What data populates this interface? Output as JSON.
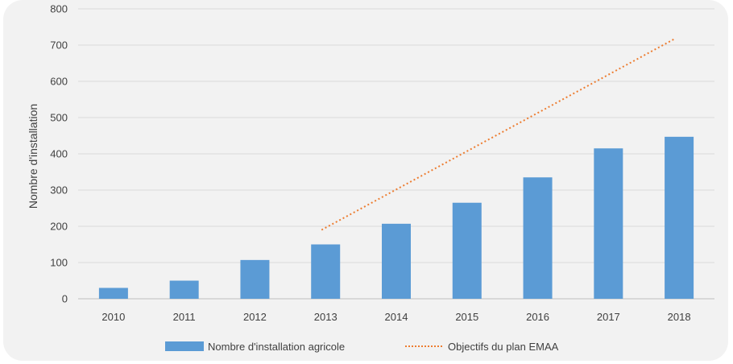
{
  "chart_data": {
    "type": "bar",
    "categories": [
      "2010",
      "2011",
      "2012",
      "2013",
      "2014",
      "2015",
      "2016",
      "2017",
      "2018"
    ],
    "series": [
      {
        "name": "Nombre d'installation agricole",
        "kind": "bar",
        "color": "#5b9bd5",
        "values": [
          30,
          50,
          107,
          150,
          207,
          265,
          335,
          415,
          447
        ]
      },
      {
        "name": "Objectifs du plan EMAA",
        "kind": "line",
        "style": "dotted",
        "color": "#ed7d31",
        "x": [
          "2013",
          "2018"
        ],
        "values": [
          190,
          718
        ]
      }
    ],
    "ylabel": "Nombre d'installation",
    "xlabel": "",
    "title": "",
    "ylim": [
      0,
      800
    ],
    "yticks": [
      "0",
      "100",
      "200",
      "300",
      "400",
      "500",
      "600",
      "700",
      "800"
    ],
    "grid": true,
    "legend": "bottom"
  }
}
